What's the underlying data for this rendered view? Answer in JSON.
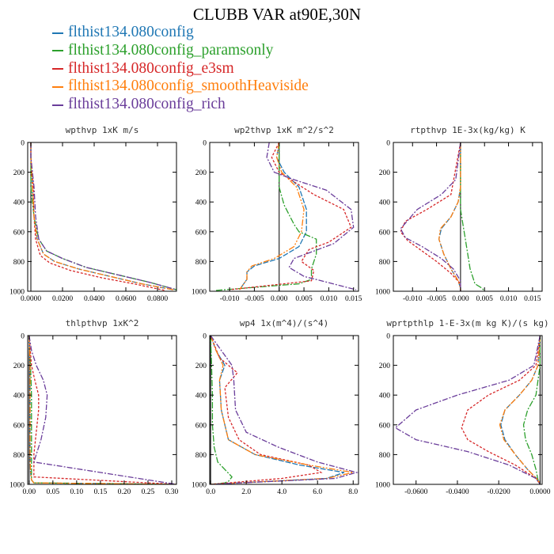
{
  "title": "CLUBB VAR at90E,30N",
  "legend": [
    {
      "label": "flthist134.080config",
      "color": "#1f77b4"
    },
    {
      "label": "flthist134.080config_paramsonly",
      "color": "#2ca02c"
    },
    {
      "label": "flthist134.080config_e3sm",
      "color": "#d62728"
    },
    {
      "label": "flthist134.080config_smoothHeaviside",
      "color": "#ff7f0e"
    },
    {
      "label": "flthist134.080config_rich",
      "color": "#6a3d9a"
    }
  ],
  "chart_data": [
    {
      "type": "line",
      "title": "wpthvp   1xK m/s",
      "xlim": [
        -0.002,
        0.092
      ],
      "xticks": [
        "0.0000",
        "0.0200",
        "0.0400",
        "0.0600",
        "0.0800"
      ],
      "xtick_values": [
        0.0,
        0.02,
        0.04,
        0.06,
        0.08
      ],
      "ylim": [
        1000,
        0
      ],
      "yticks": [
        "0",
        "200",
        "400",
        "600",
        "800",
        "1000"
      ],
      "series": [
        {
          "name": "flthist134.080config",
          "x": [
            0.0,
            0.0,
            0.001,
            0.002,
            0.004,
            0.008,
            0.015,
            0.03,
            0.05,
            0.07,
            0.09
          ],
          "y": [
            0,
            100,
            300,
            500,
            650,
            750,
            800,
            850,
            900,
            950,
            990
          ]
        },
        {
          "name": "flthist134.080config_paramsonly",
          "x": [
            0.0,
            0.0,
            0.0,
            0.002,
            0.005,
            0.01,
            0.02,
            0.035,
            0.055,
            0.075,
            0.092
          ],
          "y": [
            0,
            100,
            300,
            500,
            650,
            730,
            780,
            840,
            890,
            940,
            990
          ]
        },
        {
          "name": "flthist134.080config_e3sm",
          "x": [
            0.0,
            0.0,
            0.0015,
            0.002,
            0.003,
            0.006,
            0.012,
            0.025,
            0.045,
            0.065,
            0.085
          ],
          "y": [
            0,
            100,
            300,
            500,
            650,
            760,
            810,
            860,
            910,
            950,
            995
          ]
        },
        {
          "name": "flthist134.080config_smoothHeaviside",
          "x": [
            0.0,
            0.0,
            0.001,
            0.002,
            0.004,
            0.008,
            0.015,
            0.03,
            0.05,
            0.07,
            0.09
          ],
          "y": [
            0,
            100,
            300,
            500,
            650,
            750,
            800,
            850,
            900,
            950,
            990
          ]
        },
        {
          "name": "flthist134.080config_rich",
          "x": [
            0.0,
            0.0,
            0.002,
            0.003,
            0.005,
            0.01,
            0.02,
            0.035,
            0.055,
            0.075,
            0.092
          ],
          "y": [
            0,
            100,
            300,
            500,
            650,
            730,
            780,
            840,
            890,
            940,
            990
          ]
        }
      ]
    },
    {
      "type": "line",
      "title": "wp2thvp   1xK m^2/s^2",
      "xlim": [
        -0.014,
        0.016
      ],
      "xticks": [
        "-0.010",
        "-0.005",
        "0.000",
        "0.005",
        "0.010",
        "0.015"
      ],
      "xtick_values": [
        -0.01,
        -0.005,
        0.0,
        0.005,
        0.01,
        0.015
      ],
      "ylim": [
        1000,
        0
      ],
      "yticks": [
        "0",
        "200",
        "400",
        "600",
        "800",
        "1000"
      ],
      "series": [
        {
          "name": "flthist134.080config",
          "x": [
            0.0,
            -0.0005,
            0.001,
            0.004,
            0.0055,
            0.0055,
            0.004,
            0.0,
            -0.005,
            -0.0065,
            -0.0065,
            -0.008
          ],
          "y": [
            0,
            100,
            200,
            300,
            450,
            600,
            700,
            780,
            830,
            870,
            920,
            990
          ]
        },
        {
          "name": "flthist134.080config_paramsonly",
          "x": [
            0.0,
            0.0,
            0.0,
            0.001,
            0.003,
            0.004,
            0.0075,
            0.0075,
            0.0065,
            0.0065,
            0.004,
            -0.013
          ],
          "y": [
            0,
            200,
            300,
            420,
            550,
            600,
            650,
            750,
            850,
            920,
            950,
            995
          ]
        },
        {
          "name": "flthist134.080config_e3sm",
          "x": [
            0.0,
            -0.0015,
            0.0,
            0.007,
            0.013,
            0.0145,
            0.01,
            0.006,
            0.0045,
            0.007,
            0.0065,
            -0.01
          ],
          "y": [
            0,
            100,
            200,
            350,
            450,
            570,
            670,
            720,
            800,
            860,
            930,
            990
          ]
        },
        {
          "name": "flthist134.080config_smoothHeaviside",
          "x": [
            0.0,
            -0.0005,
            0.0005,
            0.0035,
            0.005,
            0.0045,
            0.003,
            -0.001,
            -0.0055,
            -0.0065,
            -0.0065,
            -0.008
          ],
          "y": [
            0,
            100,
            200,
            300,
            450,
            600,
            700,
            780,
            830,
            870,
            920,
            990
          ]
        },
        {
          "name": "flthist134.080config_rich",
          "x": [
            -0.002,
            -0.0025,
            -0.001,
            0.003,
            0.0095,
            0.0145,
            0.015,
            0.011,
            0.003,
            0.002,
            0.005,
            0.0155
          ],
          "y": [
            0,
            100,
            200,
            250,
            320,
            450,
            570,
            680,
            780,
            840,
            900,
            990
          ]
        }
      ]
    },
    {
      "type": "line",
      "title": "rtpthvp   1E-3x(kg/kg) K",
      "xlim": [
        -0.014,
        0.017
      ],
      "xticks": [
        "-0.010",
        "-0.005",
        "0.000",
        "0.005",
        "0.010",
        "0.015"
      ],
      "xtick_values": [
        -0.01,
        -0.005,
        0.0,
        0.005,
        0.01,
        0.015
      ],
      "ylim": [
        1000,
        0
      ],
      "yticks": [
        "0",
        "200",
        "400",
        "600",
        "800",
        "1000"
      ],
      "series": [
        {
          "name": "flthist134.080config",
          "x": [
            0.0,
            0.0,
            -0.0005,
            -0.002,
            -0.004,
            -0.0045,
            -0.0035,
            -0.002,
            -0.0005,
            0.0,
            0.0
          ],
          "y": [
            0,
            300,
            400,
            500,
            580,
            650,
            750,
            850,
            930,
            980,
            1000
          ]
        },
        {
          "name": "flthist134.080config_paramsonly",
          "x": [
            0.0,
            0.0,
            0.0,
            0.0005,
            0.001,
            0.0015,
            0.002,
            0.0025,
            0.003,
            0.0045,
            0.005
          ],
          "y": [
            0,
            300,
            450,
            550,
            650,
            750,
            850,
            900,
            950,
            980,
            1000
          ]
        },
        {
          "name": "flthist134.080config_e3sm",
          "x": [
            0.0,
            -0.002,
            -0.007,
            -0.0115,
            -0.0125,
            -0.011,
            -0.008,
            -0.005,
            -0.002,
            0.0,
            0.0
          ],
          "y": [
            0,
            350,
            450,
            530,
            600,
            660,
            730,
            800,
            880,
            950,
            1000
          ]
        },
        {
          "name": "flthist134.080config_smoothHeaviside",
          "x": [
            0.0,
            0.0,
            -0.0005,
            -0.002,
            -0.0042,
            -0.0045,
            -0.0035,
            -0.002,
            -0.0005,
            0.0,
            0.0
          ],
          "y": [
            0,
            300,
            400,
            500,
            580,
            650,
            750,
            850,
            930,
            980,
            1000
          ]
        },
        {
          "name": "flthist134.080config_rich",
          "x": [
            0.0,
            -0.001,
            -0.004,
            -0.009,
            -0.0125,
            -0.0115,
            -0.008,
            -0.004,
            -0.0015,
            0.0,
            0.0
          ],
          "y": [
            0,
            250,
            350,
            450,
            580,
            640,
            700,
            780,
            850,
            930,
            1000
          ]
        }
      ]
    },
    {
      "type": "line",
      "title": "thlpthvp   1xK^2",
      "xlim": [
        -0.003,
        0.31
      ],
      "xticks": [
        "0.00",
        "0.05",
        "0.10",
        "0.15",
        "0.20",
        "0.25",
        "0.30"
      ],
      "xtick_values": [
        0.0,
        0.05,
        0.1,
        0.15,
        0.2,
        0.25,
        0.3
      ],
      "ylim": [
        1000,
        0
      ],
      "yticks": [
        "0",
        "200",
        "400",
        "600",
        "800",
        "1000"
      ],
      "series": [
        {
          "name": "flthist134.080config",
          "x": [
            0.0,
            0.002,
            0.002,
            0.002,
            0.002,
            0.003,
            0.005,
            0.01,
            0.31
          ],
          "y": [
            0,
            200,
            400,
            600,
            800,
            920,
            970,
            990,
            1000
          ]
        },
        {
          "name": "flthist134.080config_paramsonly",
          "x": [
            0.0,
            0.003,
            0.005,
            0.005,
            0.005,
            0.005,
            0.005,
            0.01,
            0.31
          ],
          "y": [
            0,
            200,
            400,
            600,
            800,
            920,
            970,
            990,
            1000
          ]
        },
        {
          "name": "flthist134.080config_e3sm",
          "x": [
            0.0,
            0.005,
            0.012,
            0.02,
            0.02,
            0.015,
            0.01,
            0.01,
            0.31
          ],
          "y": [
            0,
            200,
            300,
            400,
            500,
            650,
            800,
            950,
            1000
          ]
        },
        {
          "name": "flthist134.080config_smoothHeaviside",
          "x": [
            0.0,
            0.002,
            0.002,
            0.002,
            0.002,
            0.003,
            0.005,
            0.01,
            0.31
          ],
          "y": [
            0,
            200,
            400,
            600,
            800,
            920,
            970,
            990,
            1000
          ]
        },
        {
          "name": "flthist134.080config_rich",
          "x": [
            0.0,
            0.005,
            0.015,
            0.03,
            0.038,
            0.035,
            0.025,
            0.01,
            0.31
          ],
          "y": [
            0,
            100,
            200,
            300,
            400,
            550,
            700,
            850,
            1000
          ]
        }
      ]
    },
    {
      "type": "line",
      "title": "wp4   1x(m^4)/(s^4)",
      "xlim": [
        -0.05,
        8.3
      ],
      "xticks": [
        "0.0",
        "2.0",
        "4.0",
        "6.0",
        "8.0"
      ],
      "xtick_values": [
        0.0,
        2.0,
        4.0,
        6.0,
        8.0
      ],
      "ylim": [
        1000,
        0
      ],
      "yticks": [
        "0",
        "200",
        "400",
        "600",
        "800",
        "1000"
      ],
      "series": [
        {
          "name": "flthist134.080config",
          "x": [
            0.0,
            0.3,
            0.8,
            0.5,
            0.6,
            1.0,
            2.5,
            5.0,
            7.5,
            6.5,
            0.0
          ],
          "y": [
            0,
            100,
            200,
            300,
            500,
            700,
            800,
            870,
            920,
            960,
            1000
          ]
        },
        {
          "name": "flthist134.080config_paramsonly",
          "x": [
            0.0,
            0.05,
            0.1,
            0.1,
            0.2,
            0.4,
            0.8,
            1.2,
            1.0,
            0.8,
            0.0
          ],
          "y": [
            0,
            200,
            400,
            600,
            750,
            850,
            900,
            950,
            980,
            990,
            1000
          ]
        },
        {
          "name": "flthist134.080config_e3sm",
          "x": [
            0.0,
            0.5,
            1.5,
            0.8,
            1.0,
            1.6,
            2.8,
            5.5,
            6.2,
            4.0,
            0.0
          ],
          "y": [
            0,
            150,
            250,
            350,
            550,
            700,
            800,
            870,
            920,
            960,
            1000
          ]
        },
        {
          "name": "flthist134.080config_smoothHeaviside",
          "x": [
            0.0,
            0.3,
            0.7,
            0.5,
            0.6,
            1.0,
            2.5,
            5.5,
            8.0,
            6.5,
            0.0
          ],
          "y": [
            0,
            100,
            200,
            300,
            500,
            700,
            800,
            870,
            920,
            960,
            1000
          ]
        },
        {
          "name": "flthist134.080config_rich",
          "x": [
            0.0,
            0.6,
            1.2,
            1.3,
            1.4,
            2.0,
            3.8,
            6.0,
            8.2,
            7.0,
            0.0
          ],
          "y": [
            0,
            100,
            200,
            300,
            500,
            650,
            750,
            850,
            920,
            960,
            1000
          ]
        }
      ]
    },
    {
      "type": "line",
      "title": "wprtpthlp   1-E-3x(m kg K)/(s kg)",
      "xlim": [
        -0.071,
        0.001
      ],
      "xticks": [
        "-0.0600",
        "-0.0400",
        "-0.0200",
        "0.0000"
      ],
      "xtick_values": [
        -0.06,
        -0.04,
        -0.02,
        0.0
      ],
      "ylim": [
        1000,
        0
      ],
      "yticks": [
        "0",
        "200",
        "400",
        "600",
        "800",
        "1000"
      ],
      "series": [
        {
          "name": "flthist134.080config",
          "x": [
            0.0,
            -0.001,
            -0.004,
            -0.01,
            -0.017,
            -0.019,
            -0.017,
            -0.012,
            -0.006,
            -0.001,
            0.0
          ],
          "y": [
            0,
            200,
            300,
            400,
            500,
            600,
            700,
            800,
            900,
            970,
            1000
          ]
        },
        {
          "name": "flthist134.080config_paramsonly",
          "x": [
            0.0,
            0.0,
            -0.001,
            -0.002,
            -0.006,
            -0.008,
            -0.007,
            -0.004,
            -0.002,
            -0.001,
            0.0
          ],
          "y": [
            0,
            200,
            300,
            400,
            500,
            600,
            700,
            800,
            900,
            970,
            1000
          ]
        },
        {
          "name": "flthist134.080config_e3sm",
          "x": [
            0.0,
            -0.002,
            -0.01,
            -0.025,
            -0.035,
            -0.038,
            -0.035,
            -0.025,
            -0.012,
            -0.002,
            0.0
          ],
          "y": [
            0,
            200,
            300,
            400,
            500,
            620,
            700,
            780,
            870,
            960,
            1000
          ]
        },
        {
          "name": "flthist134.080config_smoothHeaviside",
          "x": [
            0.0,
            -0.001,
            -0.004,
            -0.01,
            -0.017,
            -0.0195,
            -0.0175,
            -0.012,
            -0.006,
            -0.001,
            0.0
          ],
          "y": [
            0,
            200,
            300,
            400,
            500,
            600,
            700,
            800,
            900,
            970,
            1000
          ]
        },
        {
          "name": "flthist134.080config_rich",
          "x": [
            0.0,
            -0.003,
            -0.015,
            -0.04,
            -0.06,
            -0.07,
            -0.06,
            -0.035,
            -0.015,
            -0.002,
            0.0
          ],
          "y": [
            0,
            200,
            300,
            400,
            500,
            620,
            700,
            780,
            870,
            960,
            1000
          ]
        }
      ]
    }
  ]
}
